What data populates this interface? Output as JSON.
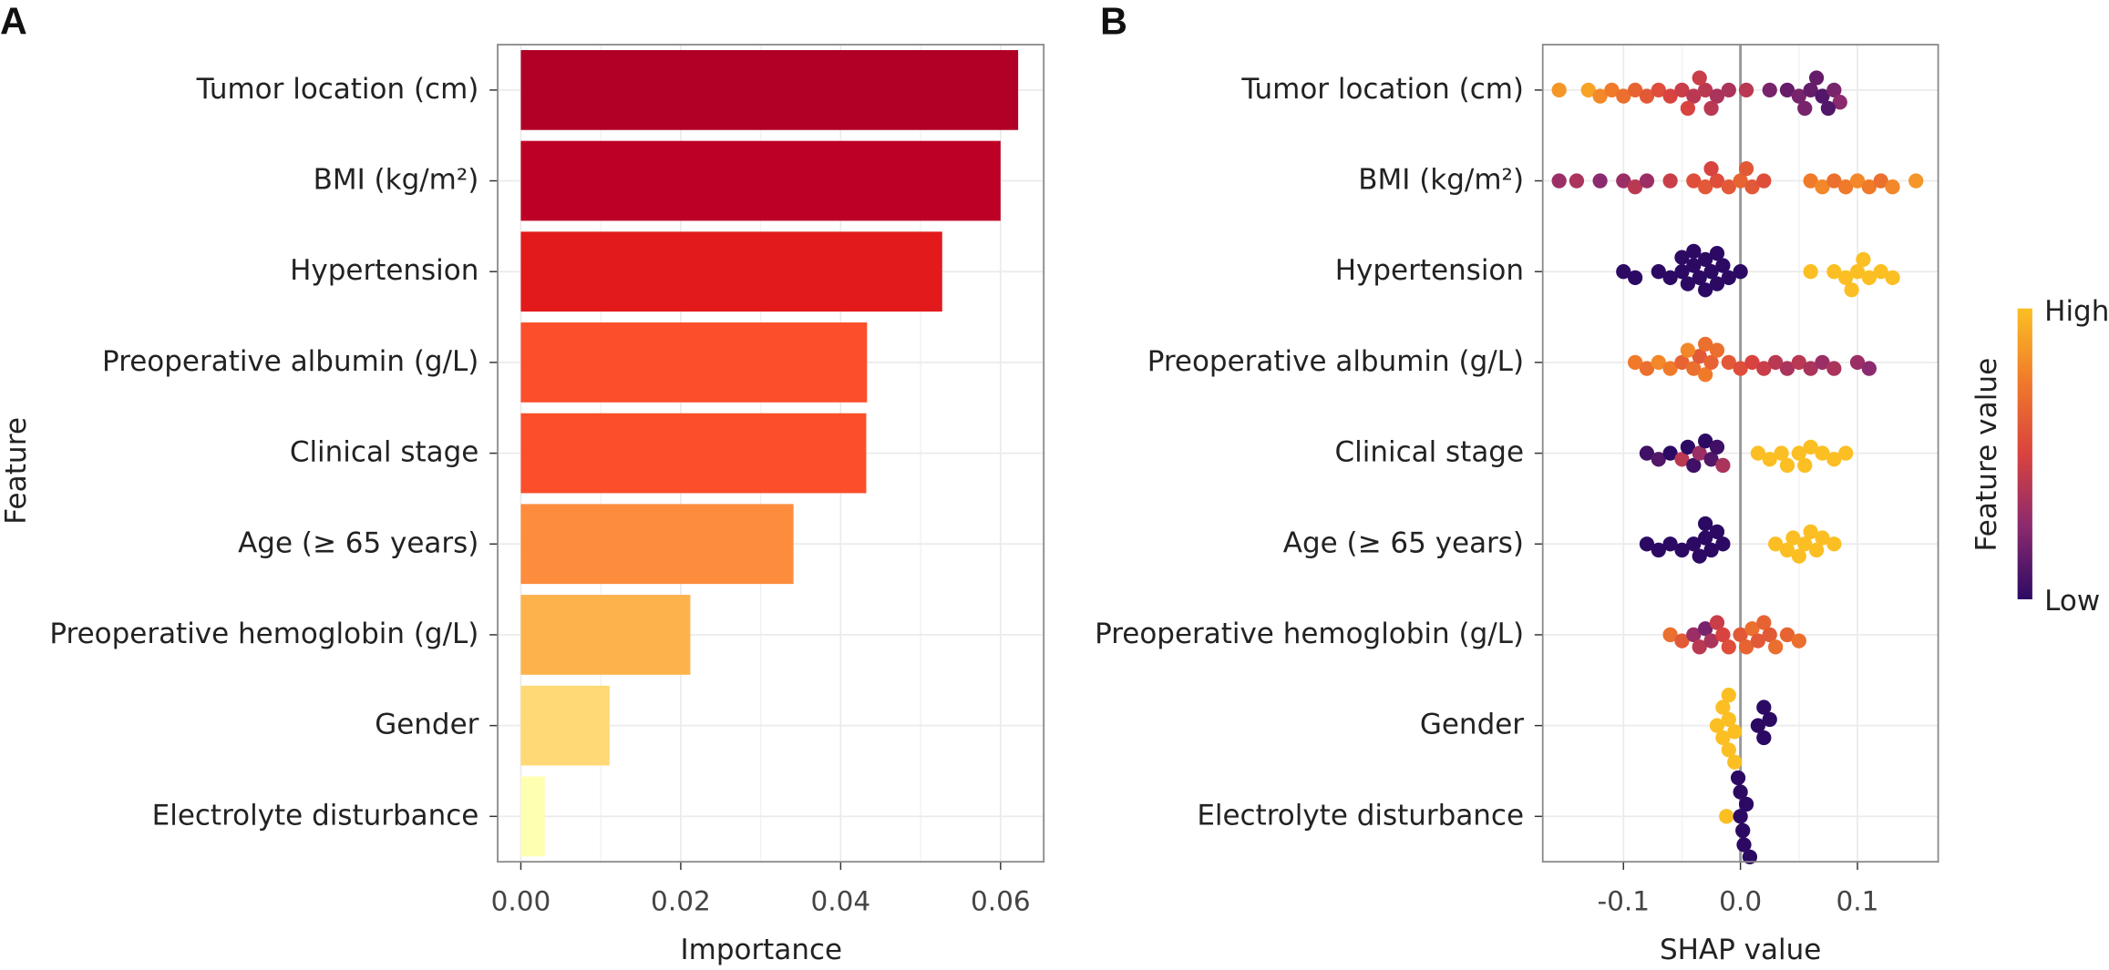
{
  "chart_data": [
    {
      "type": "bar",
      "orientation": "horizontal",
      "panel_label": "A",
      "x_label": "Importance",
      "y_label": "Feature",
      "categories": [
        "Tumor location (cm)",
        "BMI (kg/m²)",
        "Hypertension",
        "Preoperative albumin (g/L)",
        "Clinical stage",
        "Age (≥ 65 years)",
        "Preoperative hemoglobin (g/L)",
        "Gender",
        "Electrolyte disturbance"
      ],
      "values": [
        0.0622,
        0.06,
        0.0527,
        0.0433,
        0.0432,
        0.0341,
        0.0212,
        0.0111,
        0.003
      ],
      "colors": [
        "#b10026",
        "#bd0026",
        "#e31a1c",
        "#fc4e2a",
        "#fc4e2a",
        "#fd8d3c",
        "#feb24c",
        "#fed976",
        "#ffffb2"
      ],
      "xlim": [
        -0.0029,
        0.0654
      ],
      "xticks": [
        {
          "value": 0,
          "label": "0.00"
        },
        {
          "value": 0.02,
          "label": "0.02"
        },
        {
          "value": 0.04,
          "label": "0.04"
        },
        {
          "value": 0.06,
          "label": "0.06"
        }
      ],
      "grid": true
    },
    {
      "type": "beeswarm",
      "panel_label": "B",
      "x_label": "SHAP value",
      "categories": [
        "Tumor location (cm)",
        "BMI (kg/m²)",
        "Hypertension",
        "Preoperative albumin (g/L)",
        "Clinical stage",
        "Age (≥ 65 years)",
        "Preoperative hemoglobin (g/L)",
        "Gender",
        "Electrolyte disturbance"
      ],
      "points": [
        {
          "shap": [
            -0.155,
            -0.13,
            -0.12,
            -0.11,
            -0.1,
            -0.09,
            -0.08,
            -0.07,
            -0.06,
            -0.05,
            -0.04,
            -0.03,
            -0.02,
            -0.01,
            0.005,
            -0.035,
            -0.045,
            -0.025,
            0.025,
            0.04,
            0.05,
            0.06,
            0.07,
            0.08,
            0.085,
            0.065,
            0.055,
            0.075
          ],
          "feature_value": [
            0.85,
            0.9,
            0.8,
            0.75,
            0.7,
            0.65,
            0.6,
            0.55,
            0.5,
            0.45,
            0.4,
            0.4,
            0.35,
            0.35,
            0.4,
            0.45,
            0.5,
            0.4,
            0.2,
            0.15,
            0.2,
            0.15,
            0.1,
            0.2,
            0.25,
            0.15,
            0.2,
            0.1
          ]
        },
        {
          "shap": [
            -0.155,
            -0.14,
            -0.12,
            -0.1,
            -0.09,
            -0.08,
            -0.06,
            -0.04,
            -0.03,
            -0.02,
            -0.01,
            0,
            0.01,
            0.02,
            -0.025,
            0.005,
            0.06,
            0.07,
            0.08,
            0.09,
            0.1,
            0.11,
            0.12,
            0.13,
            0.15
          ],
          "feature_value": [
            0.3,
            0.35,
            0.25,
            0.3,
            0.4,
            0.3,
            0.45,
            0.55,
            0.6,
            0.55,
            0.6,
            0.65,
            0.6,
            0.55,
            0.5,
            0.6,
            0.75,
            0.8,
            0.7,
            0.75,
            0.8,
            0.75,
            0.7,
            0.8,
            0.85
          ]
        },
        {
          "shap": [
            -0.1,
            -0.09,
            -0.07,
            -0.06,
            -0.05,
            -0.045,
            -0.04,
            -0.035,
            -0.03,
            -0.025,
            -0.02,
            -0.015,
            -0.01,
            0,
            -0.04,
            -0.03,
            -0.05,
            -0.02,
            0.06,
            0.08,
            0.09,
            0.1,
            0.11,
            0.12,
            0.13,
            0.105,
            0.095
          ],
          "feature_value": [
            0,
            0,
            0,
            0,
            0,
            0,
            0,
            0,
            0,
            0,
            0,
            0,
            0,
            0,
            0,
            0,
            0,
            0,
            1,
            1,
            1,
            1,
            1,
            1,
            1,
            1,
            1
          ]
        },
        {
          "shap": [
            -0.09,
            -0.08,
            -0.07,
            -0.06,
            -0.05,
            -0.04,
            -0.035,
            -0.03,
            -0.025,
            -0.02,
            -0.01,
            0,
            0.01,
            -0.045,
            -0.03,
            0.02,
            0.03,
            0.04,
            0.05,
            0.06,
            0.07,
            0.08,
            0.1,
            0.11
          ],
          "feature_value": [
            0.75,
            0.7,
            0.8,
            0.75,
            0.65,
            0.7,
            0.6,
            0.75,
            0.65,
            0.7,
            0.6,
            0.55,
            0.5,
            0.8,
            0.7,
            0.45,
            0.4,
            0.35,
            0.4,
            0.35,
            0.3,
            0.35,
            0.3,
            0.25
          ]
        },
        {
          "shap": [
            -0.08,
            -0.07,
            -0.06,
            -0.05,
            -0.045,
            -0.04,
            -0.035,
            -0.03,
            -0.025,
            -0.02,
            -0.015,
            0.015,
            0.025,
            0.035,
            0.04,
            0.05,
            0.055,
            0.06,
            0.07,
            0.08,
            0.09
          ],
          "feature_value": [
            0.05,
            0.1,
            0,
            0.4,
            0,
            0.05,
            0.3,
            0,
            0.1,
            0.05,
            0.35,
            1,
            1,
            1,
            1,
            1,
            1,
            1,
            1,
            1,
            1
          ]
        },
        {
          "shap": [
            -0.08,
            -0.07,
            -0.06,
            -0.05,
            -0.04,
            -0.035,
            -0.03,
            -0.025,
            -0.02,
            -0.015,
            -0.03,
            0.03,
            0.04,
            0.045,
            0.05,
            0.055,
            0.06,
            0.065,
            0.07,
            0.08
          ],
          "feature_value": [
            0,
            0,
            0,
            0,
            0,
            0,
            0,
            0,
            0,
            0,
            0,
            1,
            1,
            1,
            1,
            1,
            1,
            1,
            1,
            1
          ]
        },
        {
          "shap": [
            -0.06,
            -0.05,
            -0.04,
            -0.035,
            -0.03,
            -0.025,
            -0.02,
            -0.015,
            -0.01,
            0,
            0.005,
            0.01,
            0.015,
            0.02,
            0.025,
            0.03,
            0.04,
            0.05
          ],
          "feature_value": [
            0.7,
            0.6,
            0.3,
            0.4,
            0.2,
            0.35,
            0.45,
            0.5,
            0.55,
            0.6,
            0.65,
            0.7,
            0.6,
            0.65,
            0.6,
            0.7,
            0.65,
            0.7
          ]
        },
        {
          "shap": [
            -0.02,
            -0.015,
            -0.01,
            -0.005,
            -0.015,
            -0.01,
            -0.01,
            -0.005,
            0.015,
            0.02,
            0.025,
            0.02
          ],
          "feature_value": [
            1,
            1,
            1,
            1,
            1,
            1,
            1,
            1,
            0,
            0,
            0,
            0
          ]
        },
        {
          "shap": [
            -0.012,
            0,
            0.002,
            0.005,
            0,
            0.003,
            -0.002,
            0.008
          ],
          "feature_value": [
            1,
            0,
            0,
            0,
            0,
            0,
            0,
            0
          ]
        }
      ],
      "xlim": [
        -0.169,
        0.169
      ],
      "xticks": [
        {
          "value": -0.1,
          "label": "-0.1"
        },
        {
          "value": 0,
          "label": "0.0"
        },
        {
          "value": 0.1,
          "label": "0.1"
        }
      ],
      "colormap": [
        "#2c0a64",
        "#8b2a6e",
        "#d9433f",
        "#f07a2a",
        "#fbbf24"
      ],
      "colorbar_title": "Feature value",
      "color_high_label": "High",
      "color_low_label": "Low",
      "grid": true
    }
  ]
}
